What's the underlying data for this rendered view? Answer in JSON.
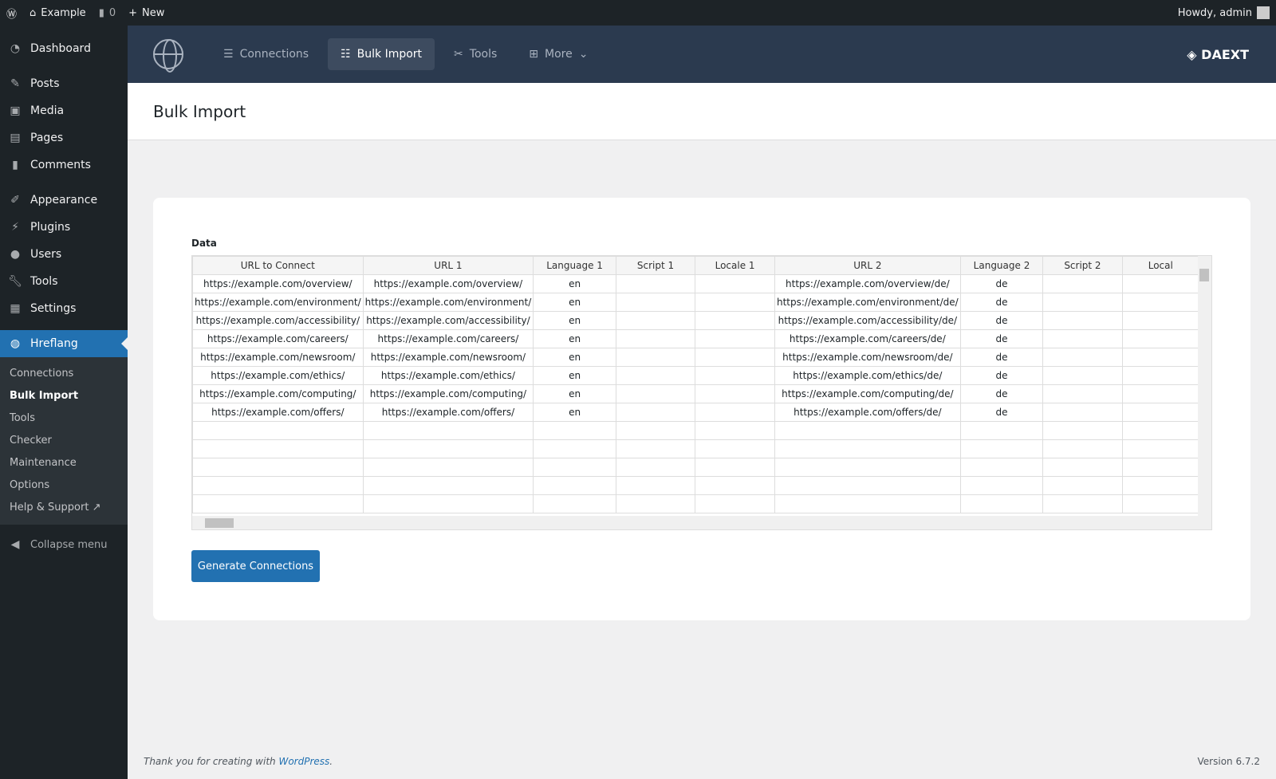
{
  "adminbar": {
    "site": "Example",
    "comments": "0",
    "new": "New",
    "howdy": "Howdy, admin"
  },
  "sidebar": {
    "items": [
      {
        "label": "Dashboard",
        "icon": "dashboard-icon"
      },
      {
        "label": "Posts",
        "icon": "pin-icon"
      },
      {
        "label": "Media",
        "icon": "media-icon"
      },
      {
        "label": "Pages",
        "icon": "pages-icon"
      },
      {
        "label": "Comments",
        "icon": "comment-icon"
      },
      {
        "label": "Appearance",
        "icon": "brush-icon"
      },
      {
        "label": "Plugins",
        "icon": "plugin-icon"
      },
      {
        "label": "Users",
        "icon": "user-icon"
      },
      {
        "label": "Tools",
        "icon": "wrench-icon"
      },
      {
        "label": "Settings",
        "icon": "settings-icon"
      },
      {
        "label": "Hreflang",
        "icon": "globe-icon"
      }
    ],
    "submenu": [
      "Connections",
      "Bulk Import",
      "Tools",
      "Checker",
      "Maintenance",
      "Options",
      "Help & Support"
    ],
    "collapse": "Collapse menu"
  },
  "topnav": {
    "items": [
      "Connections",
      "Bulk Import",
      "Tools",
      "More"
    ],
    "brand": "DAEXT"
  },
  "page": {
    "title": "Bulk Import",
    "data_label": "Data",
    "button": "Generate Connections"
  },
  "table": {
    "headers": [
      "URL to Connect",
      "URL 1",
      "Language 1",
      "Script 1",
      "Locale 1",
      "URL 2",
      "Language 2",
      "Script 2",
      "Local"
    ],
    "rows": [
      [
        "https://example.com/overview/",
        "https://example.com/overview/",
        "en",
        "",
        "",
        "https://example.com/overview/de/",
        "de",
        "",
        ""
      ],
      [
        "https://example.com/environment/",
        "https://example.com/environment/",
        "en",
        "",
        "",
        "https://example.com/environment/de/",
        "de",
        "",
        ""
      ],
      [
        "https://example.com/accessibility/",
        "https://example.com/accessibility/",
        "en",
        "",
        "",
        "https://example.com/accessibility/de/",
        "de",
        "",
        ""
      ],
      [
        "https://example.com/careers/",
        "https://example.com/careers/",
        "en",
        "",
        "",
        "https://example.com/careers/de/",
        "de",
        "",
        ""
      ],
      [
        "https://example.com/newsroom/",
        "https://example.com/newsroom/",
        "en",
        "",
        "",
        "https://example.com/newsroom/de/",
        "de",
        "",
        ""
      ],
      [
        "https://example.com/ethics/",
        "https://example.com/ethics/",
        "en",
        "",
        "",
        "https://example.com/ethics/de/",
        "de",
        "",
        ""
      ],
      [
        "https://example.com/computing/",
        "https://example.com/computing/",
        "en",
        "",
        "",
        "https://example.com/computing/de/",
        "de",
        "",
        ""
      ],
      [
        "https://example.com/offers/",
        "https://example.com/offers/",
        "en",
        "",
        "",
        "https://example.com/offers/de/",
        "de",
        "",
        ""
      ],
      [
        "",
        "",
        "",
        "",
        "",
        "",
        "",
        "",
        ""
      ],
      [
        "",
        "",
        "",
        "",
        "",
        "",
        "",
        "",
        ""
      ],
      [
        "",
        "",
        "",
        "",
        "",
        "",
        "",
        "",
        ""
      ],
      [
        "",
        "",
        "",
        "",
        "",
        "",
        "",
        "",
        ""
      ],
      [
        "",
        "",
        "",
        "",
        "",
        "",
        "",
        "",
        ""
      ]
    ]
  },
  "footer": {
    "text": "Thank you for creating with ",
    "link": "WordPress",
    "end": ".",
    "version": "Version 6.7.2"
  }
}
